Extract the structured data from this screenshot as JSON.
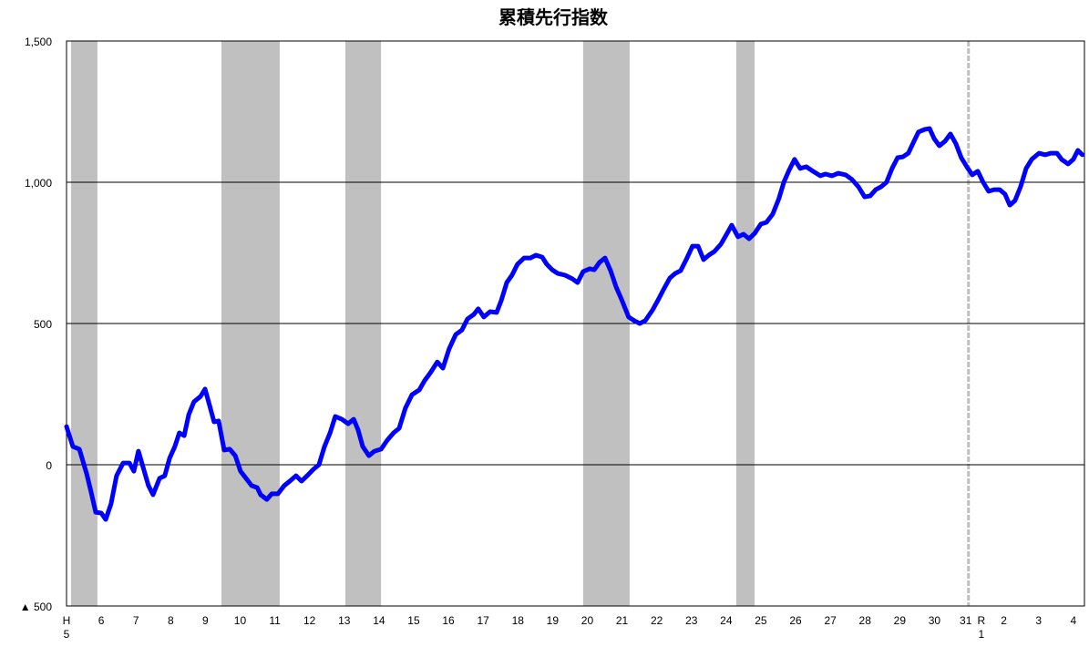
{
  "chart_data": {
    "type": "line",
    "title": "累積先行指数",
    "color": "#0000ff",
    "shade_color": "#c0c0c0",
    "grid": true,
    "xlim": [
      1993,
      2022.32
    ],
    "ylim": [
      -500,
      1500
    ],
    "yticks": [
      {
        "value": -500,
        "label": "▲ 500"
      },
      0,
      500,
      {
        "value": 1000,
        "label": "1,000"
      },
      {
        "value": 1500,
        "label": "1,500"
      }
    ],
    "xticks": [
      {
        "value": 1993,
        "label": "H\n5"
      },
      {
        "value": 1994,
        "label": "6"
      },
      {
        "value": 1995,
        "label": "7"
      },
      {
        "value": 1996,
        "label": "8"
      },
      {
        "value": 1997,
        "label": "9"
      },
      {
        "value": 1998,
        "label": "10"
      },
      {
        "value": 1999,
        "label": "11"
      },
      {
        "value": 2000,
        "label": "12"
      },
      {
        "value": 2001,
        "label": "13"
      },
      {
        "value": 2002,
        "label": "14"
      },
      {
        "value": 2003,
        "label": "15"
      },
      {
        "value": 2004,
        "label": "16"
      },
      {
        "value": 2005,
        "label": "17"
      },
      {
        "value": 2006,
        "label": "18"
      },
      {
        "value": 2007,
        "label": "19"
      },
      {
        "value": 2008,
        "label": "20"
      },
      {
        "value": 2009,
        "label": "21"
      },
      {
        "value": 2010,
        "label": "22"
      },
      {
        "value": 2011,
        "label": "23"
      },
      {
        "value": 2012,
        "label": "24"
      },
      {
        "value": 2013,
        "label": "25"
      },
      {
        "value": 2014,
        "label": "26"
      },
      {
        "value": 2015,
        "label": "27"
      },
      {
        "value": 2016,
        "label": "28"
      },
      {
        "value": 2017,
        "label": "29"
      },
      {
        "value": 2018,
        "label": "30"
      },
      {
        "value": 2018.9,
        "label": "31"
      },
      {
        "value": 2019.35,
        "label": "R\n1"
      },
      {
        "value": 2020,
        "label": "2"
      },
      {
        "value": 2021,
        "label": "3"
      },
      {
        "value": 2022,
        "label": "4"
      }
    ],
    "shaded_periods": [
      [
        1993.13,
        1993.89
      ],
      [
        1997.46,
        1999.14
      ],
      [
        2001.03,
        2002.06
      ],
      [
        2007.88,
        2009.22
      ],
      [
        2012.29,
        2012.82
      ]
    ],
    "reference_line_x": 2018.98,
    "x": [
      1993.0,
      1993.18,
      1993.37,
      1993.58,
      1993.71,
      1993.84,
      1994.0,
      1994.13,
      1994.28,
      1994.44,
      1994.63,
      1994.81,
      1994.94,
      1995.07,
      1995.2,
      1995.36,
      1995.49,
      1995.68,
      1995.83,
      1995.97,
      1996.12,
      1996.25,
      1996.39,
      1996.52,
      1996.67,
      1996.86,
      1996.99,
      1997.12,
      1997.25,
      1997.38,
      1997.54,
      1997.7,
      1997.86,
      1998.01,
      1998.17,
      1998.33,
      1998.49,
      1998.59,
      1998.77,
      1998.91,
      1999.09,
      1999.27,
      1999.43,
      1999.61,
      1999.77,
      1999.93,
      2000.11,
      2000.27,
      2000.43,
      2000.59,
      2000.74,
      2000.93,
      2001.11,
      2001.27,
      2001.4,
      2001.53,
      2001.71,
      2001.87,
      2002.06,
      2002.24,
      2002.42,
      2002.58,
      2002.76,
      2002.95,
      2003.16,
      2003.31,
      2003.5,
      2003.68,
      2003.84,
      2004.02,
      2004.21,
      2004.39,
      2004.55,
      2004.73,
      2004.86,
      2005.02,
      2005.2,
      2005.39,
      2005.52,
      2005.68,
      2005.83,
      2005.99,
      2006.18,
      2006.36,
      2006.52,
      2006.7,
      2006.83,
      2006.99,
      2007.15,
      2007.36,
      2007.57,
      2007.72,
      2007.88,
      2008.07,
      2008.2,
      2008.35,
      2008.51,
      2008.67,
      2008.83,
      2008.98,
      2009.19,
      2009.35,
      2009.51,
      2009.67,
      2009.88,
      2010.03,
      2010.19,
      2010.38,
      2010.53,
      2010.69,
      2010.85,
      2011.03,
      2011.19,
      2011.35,
      2011.5,
      2011.66,
      2011.85,
      2012.0,
      2012.16,
      2012.34,
      2012.5,
      2012.66,
      2012.82,
      2013.0,
      2013.16,
      2013.34,
      2013.52,
      2013.66,
      2013.81,
      2013.97,
      2014.13,
      2014.31,
      2014.5,
      2014.71,
      2014.86,
      2015.05,
      2015.23,
      2015.44,
      2015.62,
      2015.81,
      2015.99,
      2016.15,
      2016.31,
      2016.46,
      2016.62,
      2016.78,
      2016.94,
      2017.09,
      2017.25,
      2017.41,
      2017.54,
      2017.72,
      2017.86,
      2017.99,
      2018.14,
      2018.3,
      2018.46,
      2018.62,
      2018.77,
      2018.93,
      2019.09,
      2019.25,
      2019.4,
      2019.56,
      2019.72,
      2019.88,
      2020.03,
      2020.17,
      2020.32,
      2020.48,
      2020.64,
      2020.8,
      2021.01,
      2021.19,
      2021.35,
      2021.53,
      2021.66,
      2021.85,
      2022.0,
      2022.13,
      2022.26
    ],
    "values": [
      135,
      65,
      55,
      -32,
      -97,
      -168,
      -171,
      -194,
      -139,
      -39,
      6,
      6,
      -23,
      48,
      -6,
      -74,
      -106,
      -48,
      -39,
      23,
      65,
      113,
      103,
      177,
      223,
      242,
      268,
      210,
      152,
      155,
      52,
      55,
      32,
      -23,
      -48,
      -74,
      -81,
      -106,
      -123,
      -103,
      -103,
      -74,
      -58,
      -39,
      -58,
      -39,
      -16,
      0,
      65,
      113,
      171,
      161,
      145,
      161,
      123,
      65,
      32,
      48,
      55,
      87,
      113,
      129,
      200,
      248,
      265,
      297,
      329,
      364,
      342,
      410,
      461,
      477,
      516,
      532,
      552,
      523,
      542,
      539,
      581,
      645,
      671,
      710,
      732,
      732,
      742,
      735,
      710,
      690,
      677,
      671,
      658,
      645,
      684,
      694,
      690,
      716,
      732,
      687,
      629,
      587,
      523,
      510,
      500,
      510,
      548,
      581,
      619,
      661,
      677,
      687,
      726,
      774,
      774,
      726,
      742,
      755,
      781,
      813,
      848,
      807,
      816,
      800,
      819,
      852,
      858,
      887,
      942,
      1000,
      1042,
      1081,
      1049,
      1055,
      1039,
      1023,
      1029,
      1023,
      1032,
      1026,
      1010,
      984,
      948,
      952,
      974,
      984,
      1000,
      1049,
      1087,
      1090,
      1103,
      1145,
      1178,
      1187,
      1190,
      1155,
      1129,
      1145,
      1171,
      1136,
      1087,
      1055,
      1026,
      1039,
      1000,
      968,
      974,
      974,
      958,
      919,
      935,
      984,
      1049,
      1081,
      1103,
      1097,
      1103,
      1103,
      1081,
      1065,
      1081,
      1113,
      1097
    ]
  }
}
